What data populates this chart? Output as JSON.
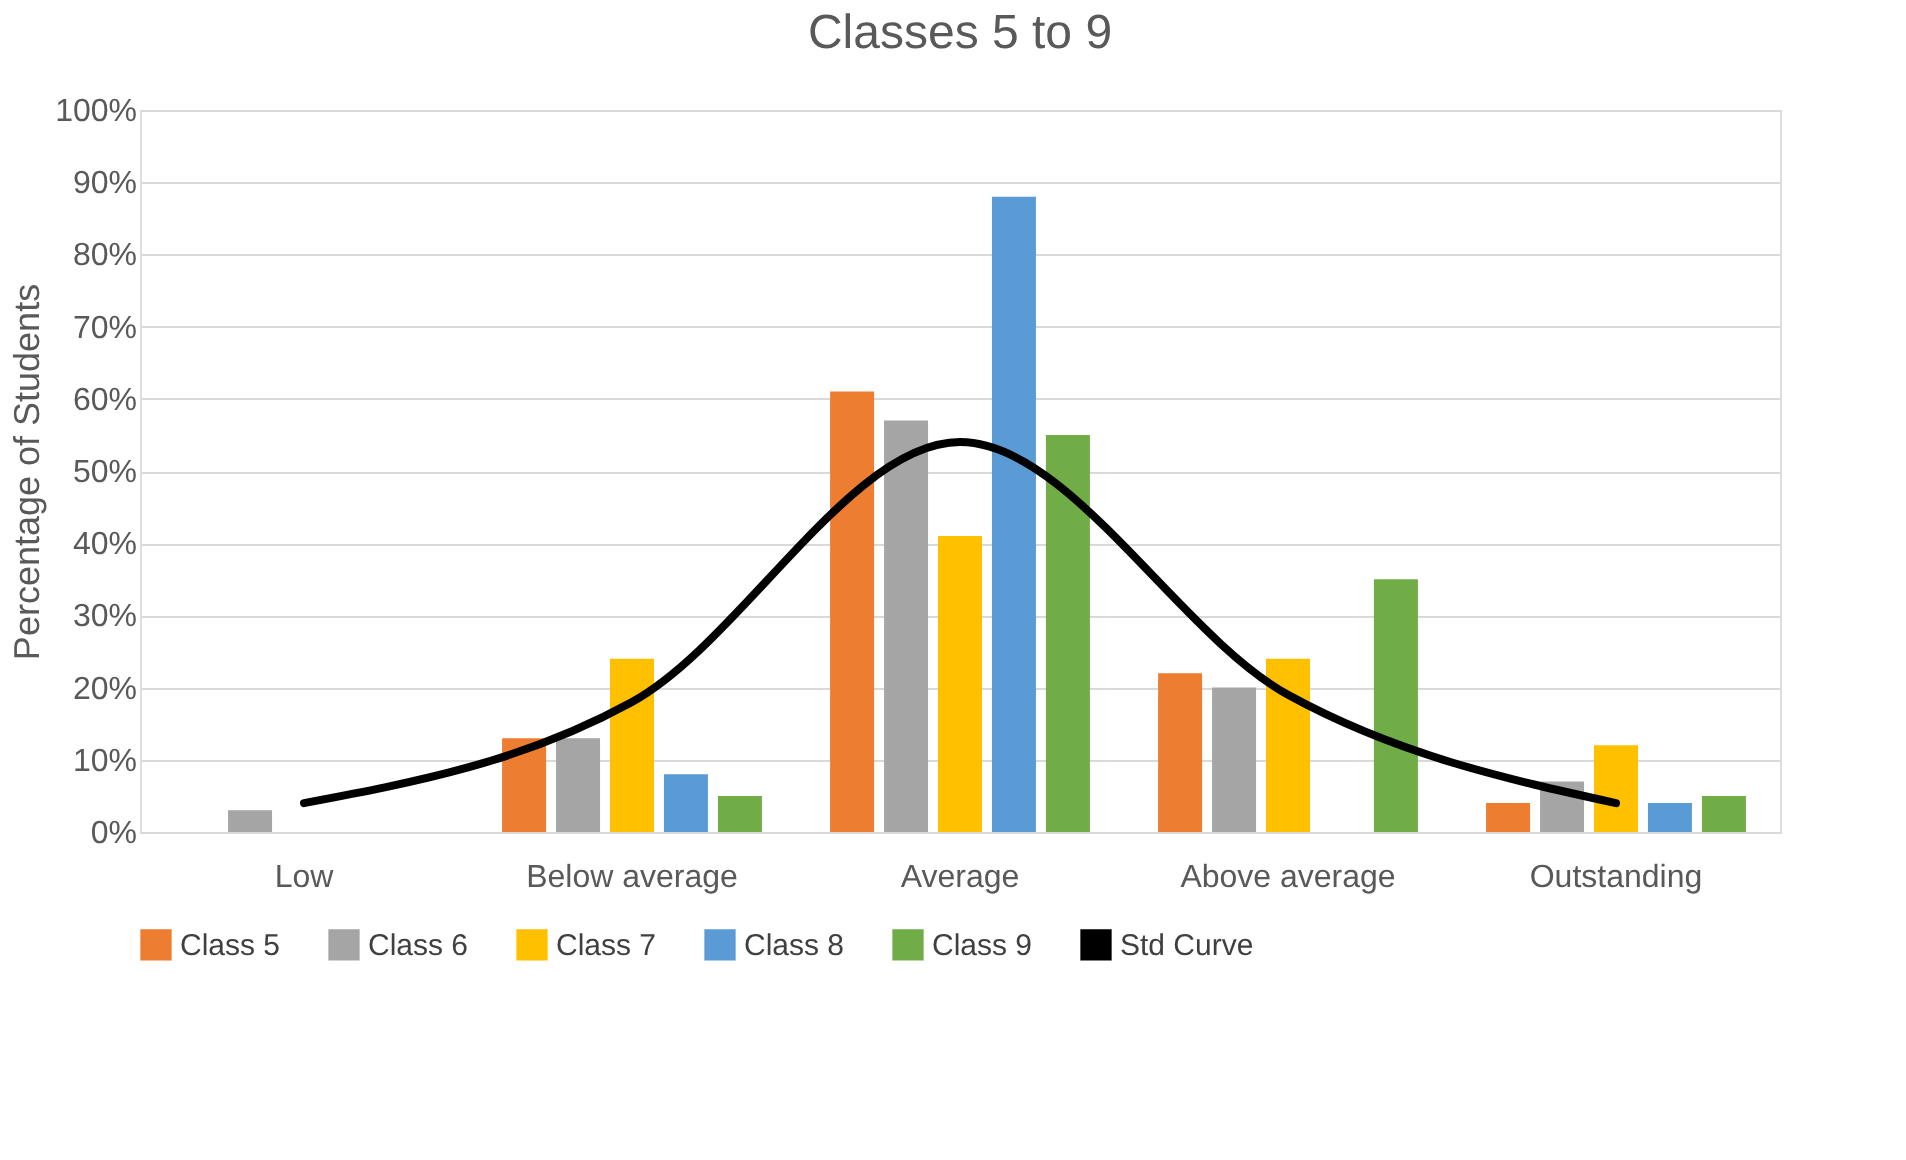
{
  "chart_data": {
    "type": "bar",
    "title": "Classes 5 to 9",
    "ylabel": "Percentage of Students",
    "categories": [
      "Low",
      "Below average",
      "Average",
      "Above average",
      "Outstanding"
    ],
    "series": [
      {
        "name": "Class 5",
        "color": "#ed7d31",
        "values": [
          0,
          13,
          61,
          22,
          4
        ]
      },
      {
        "name": "Class 6",
        "color": "#a5a5a5",
        "values": [
          3,
          13,
          57,
          20,
          7
        ]
      },
      {
        "name": "Class 7",
        "color": "#ffc000",
        "values": [
          0,
          24,
          41,
          24,
          12
        ]
      },
      {
        "name": "Class 8",
        "color": "#5b9bd5",
        "values": [
          0,
          8,
          88,
          0,
          4
        ]
      },
      {
        "name": "Class 9",
        "color": "#70ad47",
        "values": [
          0,
          5,
          55,
          35,
          5
        ]
      },
      {
        "name": "Std Curve",
        "color": "#000000",
        "type": "line",
        "values": [
          4,
          18,
          54,
          19,
          4
        ]
      }
    ],
    "ylim": [
      0,
      100
    ],
    "yticks": [
      {
        "value": 0,
        "label": "0%"
      },
      {
        "value": 10,
        "label": "10%"
      },
      {
        "value": 20,
        "label": "20%"
      },
      {
        "value": 30,
        "label": "30%"
      },
      {
        "value": 40,
        "label": "40%"
      },
      {
        "value": 50,
        "label": "50%"
      },
      {
        "value": 60,
        "label": "60%"
      },
      {
        "value": 70,
        "label": "70%"
      },
      {
        "value": 80,
        "label": "80%"
      },
      {
        "value": 90,
        "label": "90%"
      },
      {
        "value": 100,
        "label": "100%"
      }
    ],
    "grid": "y",
    "legend": "bottom",
    "line_style": "solid",
    "marker": "none"
  }
}
